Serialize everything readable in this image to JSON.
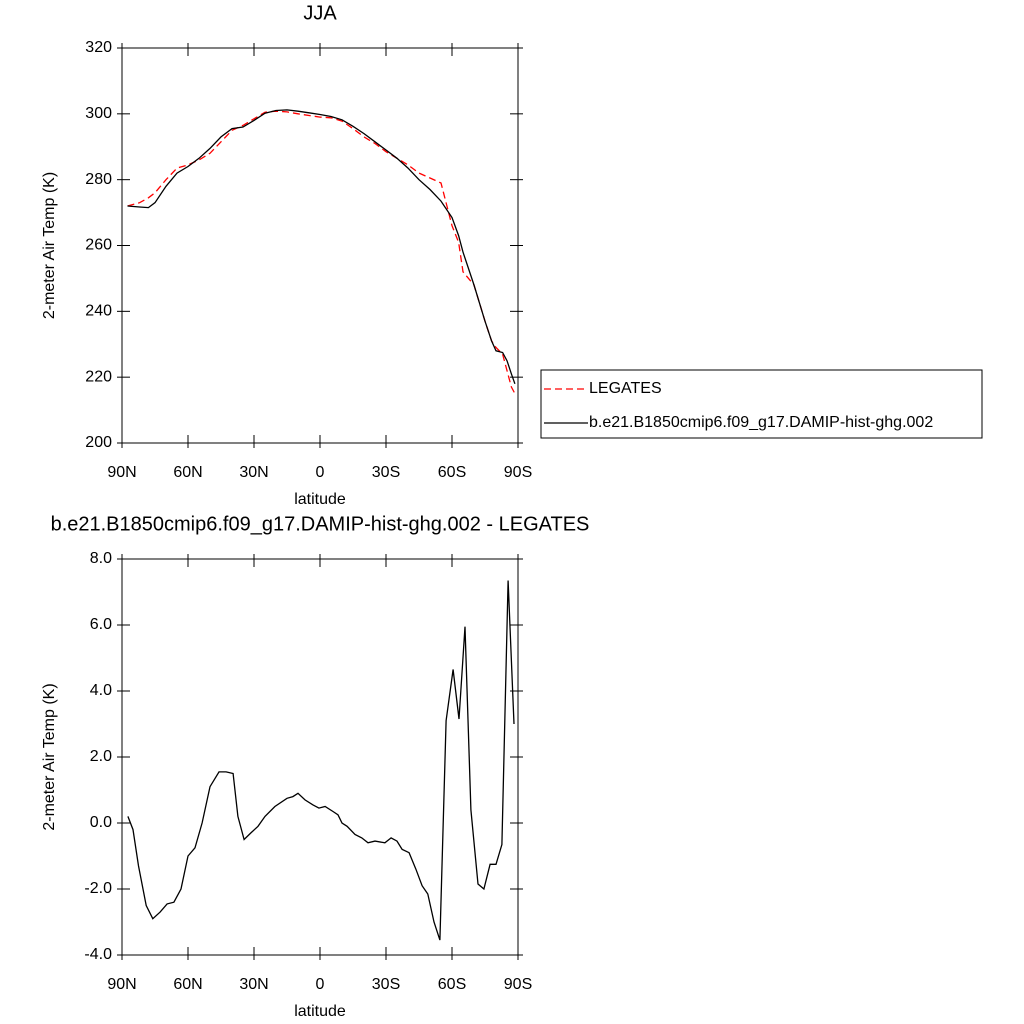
{
  "chart_data": [
    {
      "type": "line",
      "title": "JJA",
      "x_label": "latitude",
      "y_label": "2-meter Air Temp (K)",
      "x": [
        87.5,
        82,
        78,
        75,
        70,
        65,
        60,
        55,
        50,
        45,
        40,
        35,
        30,
        25,
        20,
        15,
        10,
        5,
        0,
        -5,
        -10,
        -15,
        -20,
        -25,
        -30,
        -35,
        -40,
        -45,
        -50,
        -55,
        -60,
        -63,
        -65,
        -70,
        -75,
        -78,
        -80,
        -83,
        -85,
        -87,
        -88.6
      ],
      "series": [
        {
          "name": "LEGATES",
          "color": "#ff0000",
          "line_style": "dashed",
          "values": [
            272,
            273,
            274.5,
            276,
            280,
            283.5,
            284.5,
            286,
            288,
            291.5,
            295,
            296.5,
            298.5,
            300.5,
            300.8,
            300.6,
            300,
            299.5,
            299,
            298.8,
            297.8,
            295.5,
            293,
            291,
            288.5,
            286.5,
            284.5,
            282,
            280.5,
            279,
            266,
            261,
            252,
            248,
            237,
            231,
            229,
            227,
            222,
            217,
            215
          ]
        },
        {
          "name": "b.e21.B1850cmip6.f09_g17.DAMIP-hist-ghg.002",
          "color": "#000000",
          "line_style": "solid",
          "values": [
            272,
            271.7,
            271.5,
            273,
            278,
            282,
            284,
            286.5,
            289.5,
            293,
            295.5,
            296,
            298,
            300.2,
            301,
            301.2,
            300.8,
            300.3,
            299.8,
            299.2,
            298.2,
            296.2,
            294,
            291.5,
            289,
            286.5,
            283.5,
            280,
            277,
            273.5,
            268.5,
            263,
            258,
            248,
            237,
            231,
            228,
            227.5,
            225,
            221,
            218
          ]
        }
      ],
      "xlim": [
        90,
        -90
      ],
      "xticks": [
        {
          "value": 90,
          "label": "90N"
        },
        {
          "value": 60,
          "label": "60N"
        },
        {
          "value": 30,
          "label": "30N"
        },
        0,
        {
          "value": -30,
          "label": "30S"
        },
        {
          "value": -60,
          "label": "60S"
        },
        {
          "value": -90,
          "label": "90S"
        }
      ],
      "ylim": [
        200,
        320
      ],
      "yticks": [
        200,
        220,
        240,
        260,
        280,
        300,
        320
      ],
      "legend": "right"
    },
    {
      "type": "line",
      "title": "b.e21.B1850cmip6.f09_g17.DAMIP-hist-ghg.002 - LEGATES",
      "x_label": "latitude",
      "y_label": "2-meter Air Temp (K)",
      "x": [
        87.3,
        85,
        82.5,
        79,
        76,
        72.7,
        69.5,
        66.4,
        63.2,
        60,
        56.8,
        53.6,
        50,
        45.9,
        42.7,
        39.5,
        37.3,
        34.5,
        31.4,
        28.2,
        25,
        20.5,
        15,
        12.3,
        10,
        6.8,
        3.2,
        0.5,
        -2.3,
        -5.9,
        -8.2,
        -10,
        -12.3,
        -15.9,
        -19,
        -21.8,
        -25,
        -29.5,
        -32.3,
        -35,
        -37.3,
        -40.5,
        -43.6,
        -46.4,
        -49,
        -51.8,
        -54.5,
        -57.3,
        -60.5,
        -63.2,
        -65.9,
        -68.6,
        -71.8,
        -74.5,
        -77.3,
        -80,
        -82.7,
        -85.5,
        -88.2
      ],
      "values": [
        0.2,
        -0.2,
        -1.3,
        -2.5,
        -2.9,
        -2.7,
        -2.45,
        -2.4,
        -2.0,
        -1.0,
        -0.75,
        0.0,
        1.1,
        1.55,
        1.55,
        1.5,
        0.2,
        -0.5,
        -0.3,
        -0.1,
        0.2,
        0.5,
        0.75,
        0.8,
        0.9,
        0.7,
        0.55,
        0.45,
        0.5,
        0.35,
        0.25,
        0,
        -0.1,
        -0.35,
        -0.45,
        -0.6,
        -0.55,
        -0.6,
        -0.45,
        -0.55,
        -0.8,
        -0.9,
        -1.4,
        -1.9,
        -2.15,
        -3.0,
        -3.55,
        3.1,
        4.65,
        3.15,
        5.95,
        0.4,
        -1.85,
        -2.0,
        -1.25,
        -1.25,
        -0.65,
        7.35,
        3.0
      ],
      "color": "#000000",
      "xlim": [
        90,
        -90
      ],
      "xticks": [
        {
          "value": 90,
          "label": "90N"
        },
        {
          "value": 60,
          "label": "60N"
        },
        {
          "value": 30,
          "label": "30N"
        },
        0,
        {
          "value": -30,
          "label": "30S"
        },
        {
          "value": -60,
          "label": "60S"
        },
        {
          "value": -90,
          "label": "90S"
        }
      ],
      "ylim": [
        -4,
        8
      ],
      "yticks": [
        {
          "value": -4,
          "label": "-4.0"
        },
        {
          "value": -2,
          "label": "-2.0"
        },
        {
          "value": 0,
          "label": "0.0"
        },
        {
          "value": 2,
          "label": "2.0"
        },
        {
          "value": 4,
          "label": "4.0"
        },
        {
          "value": 6,
          "label": "6.0"
        },
        {
          "value": 8,
          "label": "8.0"
        }
      ]
    }
  ]
}
